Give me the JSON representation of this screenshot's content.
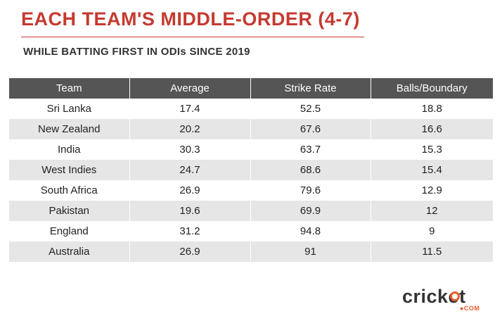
{
  "header": {
    "title": "EACH TEAM'S MIDDLE-ORDER (4-7)",
    "subtitle": "WHILE BATTING FIRST IN ODIs SINCE 2019"
  },
  "logo": {
    "word": "cricket",
    "suffix": "●COM"
  },
  "colors": {
    "title": "#c53a30",
    "header_bg": "#555555",
    "stripe": "#e6e6e6",
    "logo_accent": "#e85a2a"
  },
  "chart_data": {
    "type": "table",
    "columns": [
      "Team",
      "Average",
      "Strike Rate",
      "Balls/Boundary"
    ],
    "rows": [
      [
        "Sri Lanka",
        "17.4",
        "52.5",
        "18.8"
      ],
      [
        "New Zealand",
        "20.2",
        "67.6",
        "16.6"
      ],
      [
        "India",
        "30.3",
        "63.7",
        "15.3"
      ],
      [
        "West Indies",
        "24.7",
        "68.6",
        "15.4"
      ],
      [
        "South Africa",
        "26.9",
        "79.6",
        "12.9"
      ],
      [
        "Pakistan",
        "19.6",
        "69.9",
        "12"
      ],
      [
        "England",
        "31.2",
        "94.8",
        "9"
      ],
      [
        "Australia",
        "26.9",
        "91",
        "11.5"
      ]
    ]
  }
}
